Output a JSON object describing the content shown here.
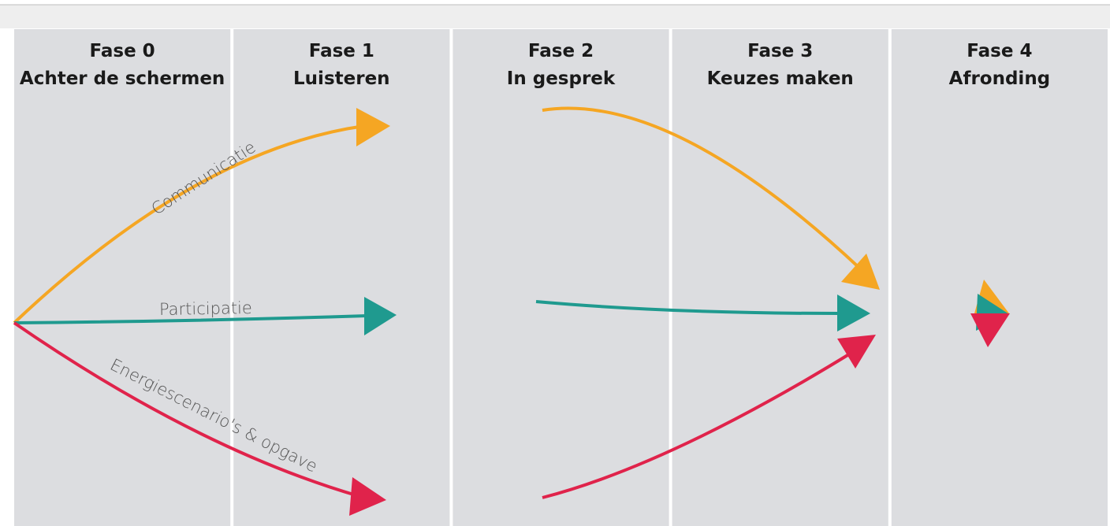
{
  "phases": [
    {
      "number": "Fase 0",
      "name": "Achter de schermen"
    },
    {
      "number": "Fase 1",
      "name": "Luisteren"
    },
    {
      "number": "Fase 2",
      "name": "In gesprek"
    },
    {
      "number": "Fase 3",
      "name": "Keuzes maken"
    },
    {
      "number": "Fase 4",
      "name": "Afronding"
    }
  ],
  "streams": [
    {
      "label": "Communicatie"
    },
    {
      "label": "Participatie"
    },
    {
      "label": "Energiescenario's & opgave"
    }
  ]
}
